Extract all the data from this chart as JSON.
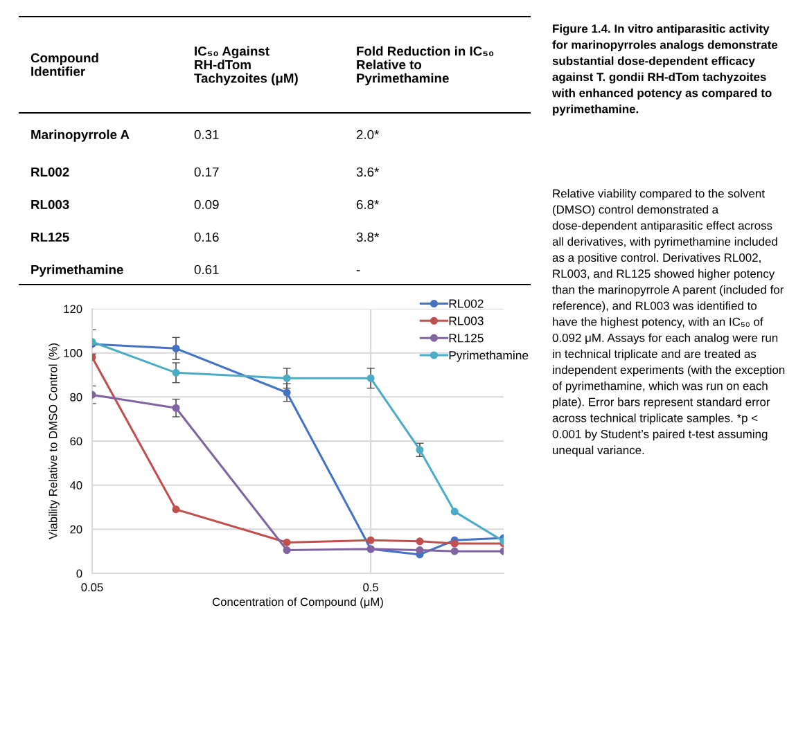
{
  "chart_data": [
    {
      "type": "other",
      "annotations": [
        "Compound Identifier",
        "IC₅₀ Against RH-dTom Tachyzoites (μM)",
        "Fold Reduction in IC₅₀ Relative to Pyrimethamine",
        "Marinopyrrole A",
        "0.31",
        "2.0*",
        "RL002",
        "0.17",
        "3.6*",
        "RL003",
        "0.09",
        "6.8*",
        "RL125",
        "0.16",
        "3.8*",
        "Pyrimethamine",
        "0.61",
        "-"
      ]
    },
    {
      "type": "line",
      "xlabel": "Concentration of Compound (μM)",
      "ylabel": "Viability Relative to DMSO Control (%)",
      "x": [
        0.05,
        0.1,
        0.25,
        0.5,
        0.75,
        1,
        1.5
      ],
      "series": [
        {
          "name": "RL002",
          "color": "#4472c4",
          "values": [
            104,
            102,
            82,
            11,
            8.5,
            15,
            16
          ],
          "errors": [
            null,
            5,
            4,
            null,
            null,
            null,
            null
          ]
        },
        {
          "name": "RL003",
          "color": "#c0504d",
          "values": [
            98,
            29,
            14,
            15,
            14.5,
            13.5,
            13.5
          ],
          "errors": [
            null,
            null,
            null,
            null,
            null,
            null,
            null
          ]
        },
        {
          "name": "RL125",
          "color": "#8064a2",
          "values": [
            81,
            75,
            10.5,
            11,
            10.5,
            10,
            10
          ],
          "errors": [
            4,
            4,
            null,
            null,
            null,
            null,
            null
          ]
        },
        {
          "name": "Pyrimethamine",
          "color": "#4bacc6",
          "values": [
            105,
            91,
            88.5,
            88.5,
            56,
            28,
            14.5
          ],
          "errors": [
            5.5,
            4.5,
            4.5,
            4.5,
            3,
            null,
            null
          ]
        }
      ],
      "log": "x",
      "xlim": [
        0.05,
        1.5
      ],
      "xticks": [
        0.05,
        0.5
      ],
      "ylim": [
        0,
        120
      ],
      "yticks": [
        0,
        20,
        40,
        60,
        80,
        100,
        120
      ],
      "grid": true,
      "legend": "top right",
      "marker": "circle",
      "line_style": "solid"
    },
    {
      "type": "other",
      "title": "Figure 1.4. In vitro antiparasitic activity for marinopyrroles analogs demonstrate substantial dose-dependent efficacy against T. gondii RH-dTom tachyzoites with enhanced potency as compared to pyrimethamine.",
      "annotations": [
        "Relative viability compared to the solvent (DMSO) control demonstrated a dose-dependent antiparasitic effect across all derivatives, with pyrimethamine included as a positive control. Derivatives RL002, RL003, and RL125 showed higher potency than the marinopyrrole A parent (included for reference), and RL003 was identified to have the highest potency, with an IC₅₀ of 0.092 μM. Assays for each analog were run in technical triplicate and are treated as independent experiments (with the exception of pyrimethamine, which was run on each plate). Error bars represent standard error across technical triplicate samples. *p < 0.001 by Student’s paired t-test assuming unequal variance."
      ]
    }
  ]
}
